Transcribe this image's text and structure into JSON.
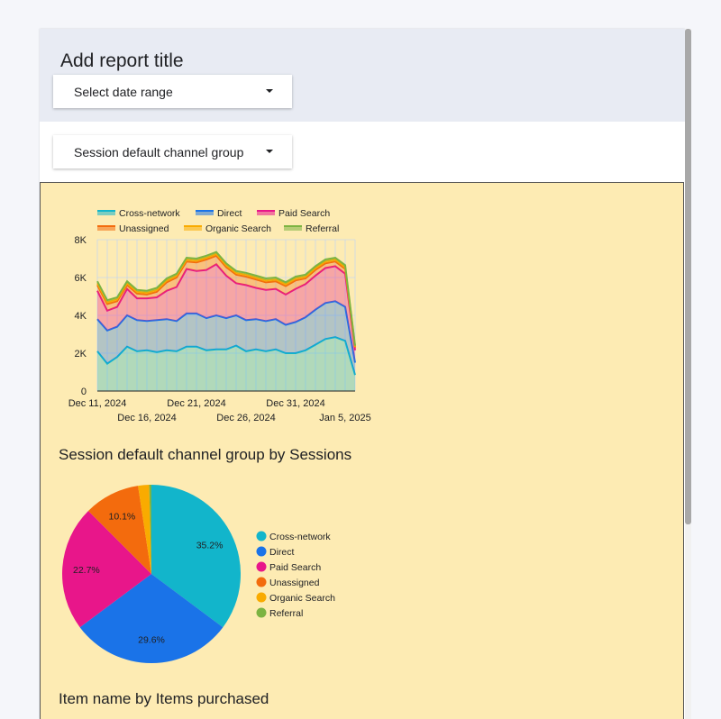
{
  "report": {
    "title": "Add report title",
    "date_dropdown_label": "Select date range",
    "channel_dropdown_label": "Session default channel group"
  },
  "colors": {
    "Cross-network": "#12b5cb",
    "Direct": "#1a73e8",
    "Paid Search": "#e8168a",
    "Unassigned": "#f36b0d",
    "Organic Search": "#f9ab00",
    "Referral": "#7cb342"
  },
  "chart_data": [
    {
      "type": "area",
      "stacked": true,
      "title": "",
      "legend": [
        "Cross-network",
        "Direct",
        "Paid Search",
        "Unassigned",
        "Organic Search",
        "Referral"
      ],
      "legend_position": "top",
      "x_ticks": [
        "Dec 11, 2024",
        "Dec 16, 2024",
        "Dec 21, 2024",
        "Dec 26, 2024",
        "Dec 31, 2024",
        "Jan 5, 2025"
      ],
      "y_ticks": [
        "0",
        "2K",
        "4K",
        "6K",
        "8K"
      ],
      "ylim": [
        0,
        8000
      ],
      "x": [
        "2024-12-11",
        "2024-12-12",
        "2024-12-13",
        "2024-12-14",
        "2024-12-15",
        "2024-12-16",
        "2024-12-17",
        "2024-12-18",
        "2024-12-19",
        "2024-12-20",
        "2024-12-21",
        "2024-12-22",
        "2024-12-23",
        "2024-12-24",
        "2024-12-25",
        "2024-12-26",
        "2024-12-27",
        "2024-12-28",
        "2024-12-29",
        "2024-12-30",
        "2024-12-31",
        "2025-01-01",
        "2025-01-02",
        "2025-01-03",
        "2025-01-04",
        "2025-01-05",
        "2025-01-06"
      ],
      "series": [
        {
          "name": "Cross-network",
          "values": [
            2100,
            1450,
            1800,
            2350,
            2100,
            2150,
            2050,
            2150,
            2100,
            2350,
            2350,
            2150,
            2200,
            2200,
            2400,
            2100,
            2200,
            2100,
            2200,
            2000,
            2000,
            2150,
            2450,
            2750,
            2850,
            2650,
            850
          ]
        },
        {
          "name": "Direct",
          "values": [
            1700,
            1750,
            1600,
            1650,
            1650,
            1550,
            1700,
            1650,
            1600,
            1750,
            1750,
            1700,
            1800,
            1650,
            1600,
            1650,
            1600,
            1600,
            1600,
            1500,
            1650,
            1750,
            1850,
            1900,
            1900,
            1800,
            650
          ]
        },
        {
          "name": "Paid Search",
          "values": [
            1500,
            1050,
            1050,
            1400,
            1150,
            1200,
            1200,
            1500,
            1800,
            2350,
            2250,
            2550,
            2700,
            2250,
            1700,
            1850,
            1650,
            1650,
            1600,
            1600,
            1750,
            1750,
            1800,
            1850,
            1850,
            1750,
            650
          ]
        },
        {
          "name": "Unassigned",
          "values": [
            300,
            350,
            300,
            200,
            250,
            200,
            300,
            450,
            500,
            400,
            450,
            550,
            450,
            450,
            450,
            450,
            450,
            400,
            400,
            450,
            450,
            300,
            300,
            250,
            250,
            250,
            150
          ]
        },
        {
          "name": "Organic Search",
          "values": [
            100,
            100,
            100,
            100,
            100,
            100,
            100,
            100,
            100,
            100,
            100,
            100,
            100,
            100,
            100,
            100,
            100,
            100,
            100,
            100,
            100,
            100,
            100,
            100,
            100,
            100,
            50
          ]
        },
        {
          "name": "Referral",
          "values": [
            100,
            100,
            100,
            100,
            100,
            100,
            100,
            100,
            100,
            100,
            100,
            100,
            100,
            100,
            100,
            100,
            100,
            100,
            100,
            100,
            100,
            100,
            100,
            100,
            100,
            100,
            50
          ]
        }
      ]
    },
    {
      "type": "pie",
      "title": "Session default channel group by Sessions",
      "legend_position": "right",
      "categories": [
        "Cross-network",
        "Direct",
        "Paid Search",
        "Unassigned",
        "Organic Search",
        "Referral"
      ],
      "values": [
        35.2,
        29.6,
        22.7,
        10.1,
        2.0,
        0.4
      ],
      "labels": [
        "35.2%",
        "29.6%",
        "22.7%",
        "10.1%",
        "",
        ""
      ]
    }
  ],
  "next_section_title": "Item name by Items purchased"
}
